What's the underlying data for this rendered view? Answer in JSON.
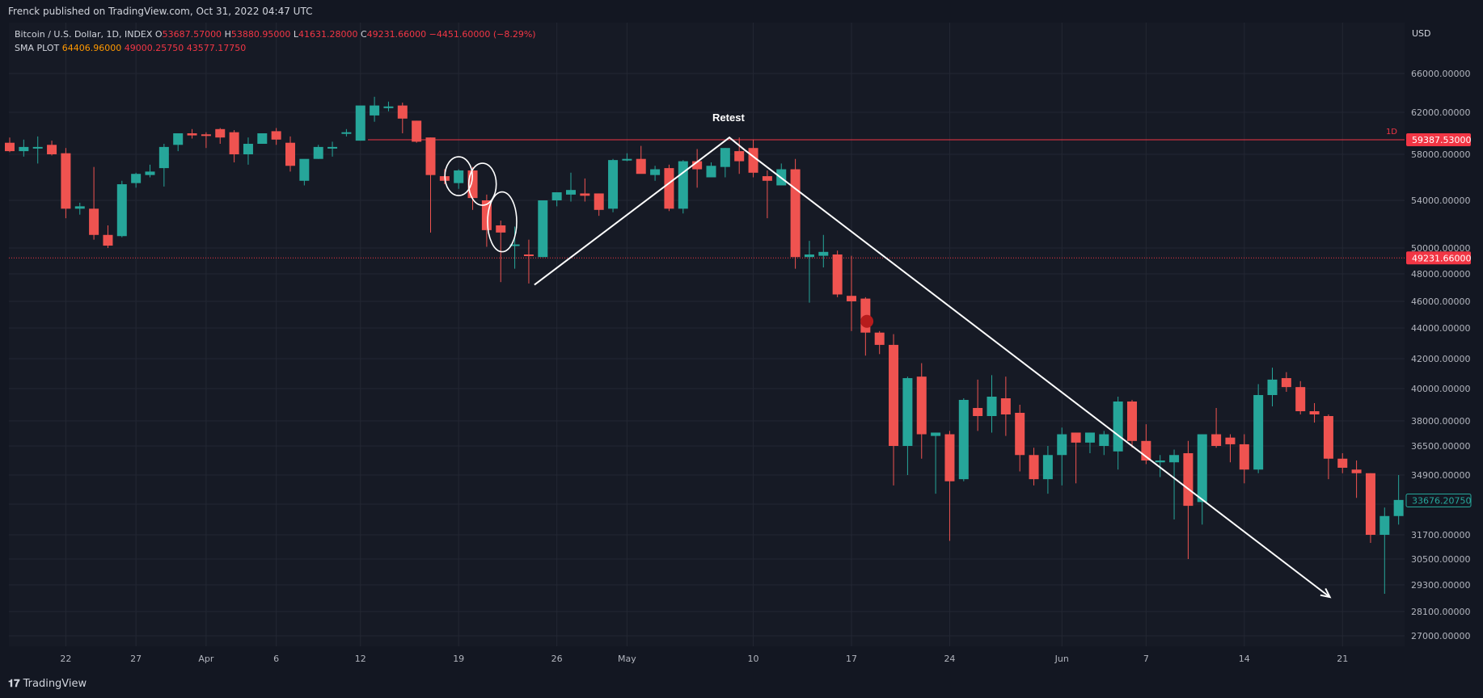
{
  "header": {
    "published": "Frenck published on TradingView.com, Oct 31, 2022 04:47 UTC"
  },
  "legend": {
    "symbol": "Bitcoin / U.S. Dollar, 1D, INDEX",
    "o_key": "O",
    "o_val": "53687.57000",
    "h_key": "H",
    "h_val": "53880.95000",
    "l_key": "L",
    "l_val": "41631.28000",
    "c_key": "C",
    "c_val": "49231.66000",
    "change": "−4451.60000 (−8.29%)",
    "sma_label": "SMA PLOT",
    "sma_v1": "64406.96000",
    "sma_v2": "49000.25750",
    "sma_v3": "43577.17750"
  },
  "footer": {
    "brand": "TradingView"
  },
  "chart_data": {
    "type": "candlestick",
    "currency_label": "USD",
    "y_axis_ticks": [
      27000,
      28100,
      29300,
      30500,
      31700,
      33500,
      34900,
      36500,
      38000,
      40000,
      42000,
      44000,
      46000,
      48000,
      50000,
      54000,
      58000,
      62000,
      66000
    ],
    "y_axis_tick_labels": [
      "27000.00000",
      "28100.00000",
      "29300.00000",
      "30500.00000",
      "31700.00000",
      "33500.00000",
      "34900.00000",
      "36500.00000",
      "38000.00000",
      "40000.00000",
      "42000.00000",
      "44000.00000",
      "46000.00000",
      "48000.00000",
      "50000.00000",
      "54000.00000",
      "58000.00000",
      "62000.00000",
      "66000.00000"
    ],
    "x_axis_labels": [
      {
        "text": "22",
        "index": 4
      },
      {
        "text": "27",
        "index": 9
      },
      {
        "text": "Apr",
        "index": 14
      },
      {
        "text": "6",
        "index": 19
      },
      {
        "text": "12",
        "index": 25
      },
      {
        "text": "19",
        "index": 32
      },
      {
        "text": "26",
        "index": 39
      },
      {
        "text": "May",
        "index": 44
      },
      {
        "text": "10",
        "index": 53
      },
      {
        "text": "17",
        "index": 60
      },
      {
        "text": "24",
        "index": 67
      },
      {
        "text": "Jun",
        "index": 75
      },
      {
        "text": "7",
        "index": 81
      },
      {
        "text": "14",
        "index": 88
      },
      {
        "text": "21",
        "index": 95
      }
    ],
    "candles": [
      [
        59100,
        59600,
        58200,
        58300
      ],
      [
        58300,
        59400,
        57800,
        58700
      ],
      [
        58700,
        59700,
        57200,
        58700
      ],
      [
        58900,
        59300,
        57900,
        58000
      ],
      [
        58100,
        58600,
        52500,
        53300
      ],
      [
        53300,
        53800,
        52800,
        53500
      ],
      [
        53300,
        56900,
        50700,
        51100
      ],
      [
        51100,
        51900,
        50000,
        50200
      ],
      [
        51000,
        55700,
        50900,
        55400
      ],
      [
        55500,
        56400,
        55100,
        56300
      ],
      [
        56200,
        57100,
        56000,
        56500
      ],
      [
        56800,
        59000,
        55200,
        58700
      ],
      [
        58900,
        60000,
        58300,
        60000
      ],
      [
        60000,
        60400,
        59500,
        59800
      ],
      [
        59900,
        60100,
        58600,
        59800
      ],
      [
        60400,
        60500,
        59000,
        59600
      ],
      [
        60100,
        60300,
        57300,
        58000
      ],
      [
        58000,
        59600,
        57100,
        59000
      ],
      [
        59000,
        59900,
        59000,
        60000
      ],
      [
        60200,
        60500,
        58900,
        59400
      ],
      [
        59100,
        59700,
        56500,
        57000
      ],
      [
        55700,
        57300,
        55300,
        57600
      ],
      [
        57600,
        58900,
        57600,
        58700
      ],
      [
        58700,
        59200,
        57800,
        58700
      ],
      [
        60100,
        60400,
        59700,
        60100
      ],
      [
        59300,
        62600,
        59300,
        62700
      ],
      [
        61700,
        63600,
        61100,
        62700
      ],
      [
        62600,
        63100,
        62100,
        62600
      ],
      [
        62700,
        63000,
        60000,
        61400
      ],
      [
        61200,
        61200,
        59100,
        59200
      ],
      [
        59600,
        59600,
        51300,
        56200
      ],
      [
        56100,
        56700,
        55400,
        55700
      ],
      [
        55500,
        56700,
        55000,
        56600
      ],
      [
        56600,
        56900,
        53200,
        54200
      ],
      [
        54000,
        54500,
        50100,
        51500
      ],
      [
        51900,
        52300,
        47400,
        51300
      ],
      [
        50300,
        51800,
        48400,
        50300
      ],
      [
        49500,
        50700,
        47300,
        49400
      ],
      [
        49300,
        54000,
        49300,
        54000
      ],
      [
        54000,
        54700,
        53500,
        54700
      ],
      [
        54500,
        56400,
        53900,
        54900
      ],
      [
        54600,
        55900,
        53900,
        54400
      ],
      [
        54600,
        54600,
        52700,
        53200
      ],
      [
        53300,
        57600,
        53000,
        57500
      ],
      [
        57500,
        58100,
        57400,
        57600
      ],
      [
        57600,
        58800,
        56400,
        56300
      ],
      [
        56200,
        57000,
        55700,
        56700
      ],
      [
        56800,
        57100,
        53100,
        53300
      ],
      [
        53300,
        57500,
        52900,
        57400
      ],
      [
        57400,
        58500,
        55100,
        56700
      ],
      [
        56000,
        57300,
        56100,
        57000
      ],
      [
        56900,
        58600,
        56000,
        58600
      ],
      [
        58300,
        59600,
        56300,
        57400
      ],
      [
        58600,
        59400,
        56000,
        56400
      ],
      [
        56100,
        56600,
        52500,
        55700
      ],
      [
        55300,
        57200,
        55400,
        56700
      ],
      [
        56700,
        57600,
        48400,
        49300
      ],
      [
        49300,
        50600,
        45900,
        49500
      ],
      [
        49400,
        51100,
        48500,
        49700
      ],
      [
        49500,
        49800,
        46300,
        46500
      ],
      [
        46400,
        49400,
        43800,
        46000
      ],
      [
        46200,
        46300,
        42200,
        43700
      ],
      [
        43700,
        43800,
        42300,
        42900
      ],
      [
        42900,
        43600,
        34400,
        36500
      ],
      [
        36500,
        40800,
        34900,
        40700
      ],
      [
        40800,
        41700,
        35800,
        37200
      ],
      [
        37100,
        37300,
        34000,
        37300
      ],
      [
        37200,
        37400,
        31400,
        34600
      ],
      [
        34700,
        39400,
        34600,
        39300
      ],
      [
        38800,
        40600,
        37400,
        38300
      ],
      [
        38300,
        40900,
        37300,
        39500
      ],
      [
        39400,
        40800,
        37100,
        38400
      ],
      [
        38500,
        39000,
        35100,
        36000
      ],
      [
        36000,
        36400,
        34400,
        34700
      ],
      [
        34700,
        36500,
        34000,
        36000
      ],
      [
        36000,
        37600,
        34400,
        37200
      ],
      [
        37300,
        37300,
        34500,
        36700
      ],
      [
        36700,
        37300,
        36100,
        37300
      ],
      [
        36500,
        37400,
        36000,
        37200
      ],
      [
        36200,
        39500,
        35200,
        39200
      ],
      [
        39200,
        39300,
        36400,
        36800
      ],
      [
        36800,
        37800,
        35500,
        35700
      ],
      [
        35600,
        36000,
        34800,
        35700
      ],
      [
        35600,
        36300,
        32600,
        36000
      ],
      [
        36100,
        36800,
        30500,
        33400
      ],
      [
        33600,
        37200,
        32300,
        37200
      ],
      [
        37200,
        38800,
        36400,
        36500
      ],
      [
        37000,
        37200,
        35600,
        36600
      ],
      [
        36600,
        37200,
        34500,
        35200
      ],
      [
        35200,
        40300,
        35000,
        39600
      ],
      [
        39600,
        41400,
        38900,
        40600
      ],
      [
        40700,
        41100,
        39800,
        40100
      ],
      [
        40100,
        40500,
        38400,
        38600
      ],
      [
        38600,
        39100,
        37900,
        38400
      ],
      [
        38300,
        38400,
        34700,
        35800
      ],
      [
        35800,
        36100,
        35000,
        35300
      ],
      [
        35200,
        35700,
        33800,
        35000
      ],
      [
        35000,
        35000,
        31300,
        31700
      ],
      [
        31700,
        33300,
        28900,
        32800
      ],
      [
        32800,
        34900,
        32300,
        33700
      ]
    ],
    "levels": [
      {
        "value": 59387.53,
        "label": "59387.53000",
        "style": "solid",
        "tag": "1D"
      },
      {
        "value": 49231.66,
        "label": "49231.66000",
        "style": "dotted"
      },
      {
        "value": 33676.2075,
        "label": "33676.20750",
        "style": "last"
      }
    ],
    "annotations": {
      "retest_text": "Retest",
      "path_points": [
        [
          37.4,
          47200
        ],
        [
          51.3,
          59600
        ],
        [
          52.4,
          58400
        ],
        [
          94.1,
          28750
        ]
      ],
      "ellipses": [
        [
          32,
          56100
        ],
        [
          33.7,
          55400
        ],
        [
          35.1,
          52200
        ]
      ],
      "dot": [
        61.1,
        44500
      ]
    }
  }
}
